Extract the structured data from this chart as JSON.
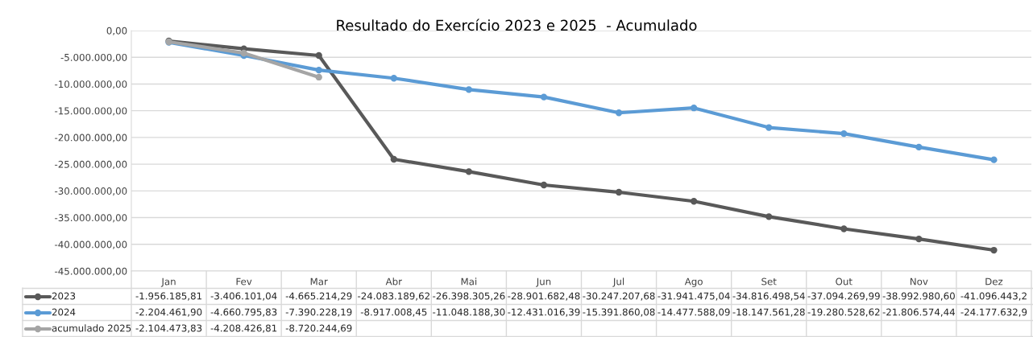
{
  "chart_data": {
    "type": "line",
    "title": "Resultado do Exercício 2023 e 2025  - Acumulado",
    "categories": [
      "Jan",
      "Fev",
      "Mar",
      "Abr",
      "Mai",
      "Jun",
      "Jul",
      "Ago",
      "Set",
      "Out",
      "Nov",
      "Dez"
    ],
    "series": [
      {
        "name": "2023",
        "color": "#595959",
        "values": [
          -1956185.81,
          -3406101.04,
          -4665214.29,
          -24083189.62,
          -26398305.26,
          -28901682.48,
          -30247207.68,
          -31941475.04,
          -34816498.54,
          -37094269.99,
          -38992980.6,
          -41096443.2
        ],
        "value_labels": [
          "-1.956.185,81",
          "-3.406.101,04",
          "-4.665.214,29",
          "-24.083.189,62",
          "-26.398.305,26",
          "-28.901.682,48",
          "-30.247.207,68",
          "-31.941.475,04",
          "-34.816.498,54",
          "-37.094.269,99",
          "-38.992.980,60",
          "-41.096.443,2"
        ]
      },
      {
        "name": "2024",
        "color": "#5b9bd5",
        "values": [
          -2204461.9,
          -4660795.83,
          -7390228.19,
          -8917008.45,
          -11048188.3,
          -12431016.39,
          -15391860.08,
          -14477588.09,
          -18147561.28,
          -19280528.62,
          -21806574.44,
          -24177632.9
        ],
        "value_labels": [
          "-2.204.461,90",
          "-4.660.795,83",
          "-7.390.228,19",
          "-8.917.008,45",
          "-11.048.188,30",
          "-12.431.016,39",
          "-15.391.860,08",
          "-14.477.588,09",
          "-18.147.561,28",
          "-19.280.528,62",
          "-21.806.574,44",
          "-24.177.632,9"
        ]
      },
      {
        "name": "acumulado 2025",
        "color": "#a5a5a5",
        "values": [
          -2104473.83,
          -4208426.81,
          -8720244.69,
          null,
          null,
          null,
          null,
          null,
          null,
          null,
          null,
          null
        ],
        "value_labels": [
          "-2.104.473,83",
          "-4.208.426,81",
          "-8.720.244,69",
          null,
          null,
          null,
          null,
          null,
          null,
          null,
          null,
          null
        ]
      }
    ],
    "ylim": [
      -45000000,
      0
    ],
    "yticks": [
      {
        "value": 0,
        "label": "0,00"
      },
      {
        "value": -5000000,
        "label": "-5.000.000,00"
      },
      {
        "value": -10000000,
        "label": "-10.000.000,00"
      },
      {
        "value": -15000000,
        "label": "-15.000.000,00"
      },
      {
        "value": -20000000,
        "label": "-20.000.000,00"
      },
      {
        "value": -25000000,
        "label": "-25.000.000,00"
      },
      {
        "value": -30000000,
        "label": "-30.000.000,00"
      },
      {
        "value": -35000000,
        "label": "-35.000.000,00"
      },
      {
        "value": -40000000,
        "label": "-40.000.000,00"
      },
      {
        "value": -45000000,
        "label": "-45.000.000,00"
      }
    ],
    "grid": "y",
    "legend": "bottom",
    "marker": "circle",
    "line_style": "solid"
  }
}
